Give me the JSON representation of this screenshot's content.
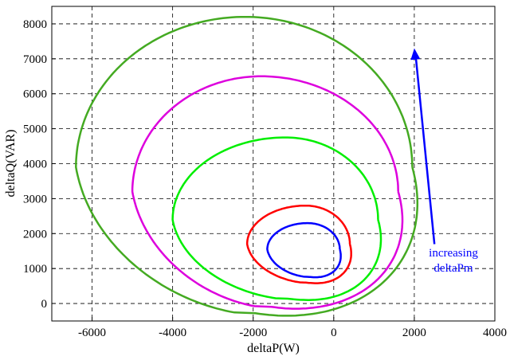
{
  "chart_data": {
    "type": "line",
    "title": "",
    "xlabel": "deltaP(W)",
    "ylabel": "deltaQ(VAR)",
    "xlim": [
      -7000,
      4000
    ],
    "ylim": [
      -500,
      8500
    ],
    "xticks": [
      -6000,
      -4000,
      -2000,
      0,
      2000,
      4000
    ],
    "yticks": [
      0,
      1000,
      2000,
      3000,
      4000,
      5000,
      6000,
      7000,
      8000
    ],
    "xtick_labels": [
      "-6000",
      "-4000",
      "-2000",
      "0",
      "2000",
      "4000"
    ],
    "ytick_labels": [
      "0",
      "1000",
      "2000",
      "3000",
      "4000",
      "5000",
      "6000",
      "7000",
      "8000"
    ],
    "grid": true,
    "grid_style": "dashed",
    "legend": "none",
    "series": [
      {
        "color": "#0000ff",
        "cx": -650,
        "ry_top": 2300,
        "y_bottom": 750,
        "x_left": -1650,
        "x_right": 150,
        "cy": 1550
      },
      {
        "color": "#ff0000",
        "cx": -700,
        "ry_top": 2800,
        "y_bottom": 580,
        "x_left": -2150,
        "x_right": 400,
        "cy": 1700
      },
      {
        "color": "#00ee00",
        "cx": -1200,
        "ry_top": 4750,
        "y_bottom": 100,
        "x_left": -4000,
        "x_right": 1100,
        "cy": 2400
      },
      {
        "color": "#dd00dd",
        "cx": -1800,
        "ry_top": 6500,
        "y_bottom": -150,
        "x_left": -5000,
        "x_right": 1600,
        "cy": 3200
      },
      {
        "color": "#44aa22",
        "cx": -2200,
        "ry_top": 8200,
        "y_bottom": -350,
        "x_left": -6400,
        "x_right": 1950,
        "cy": 3900
      }
    ],
    "annotation": {
      "text_lines": [
        "increasing",
        "deltaPm"
      ],
      "color": "#0000ff",
      "arrow_from": [
        2500,
        1700
      ],
      "arrow_to": [
        2000,
        7300
      ]
    }
  }
}
